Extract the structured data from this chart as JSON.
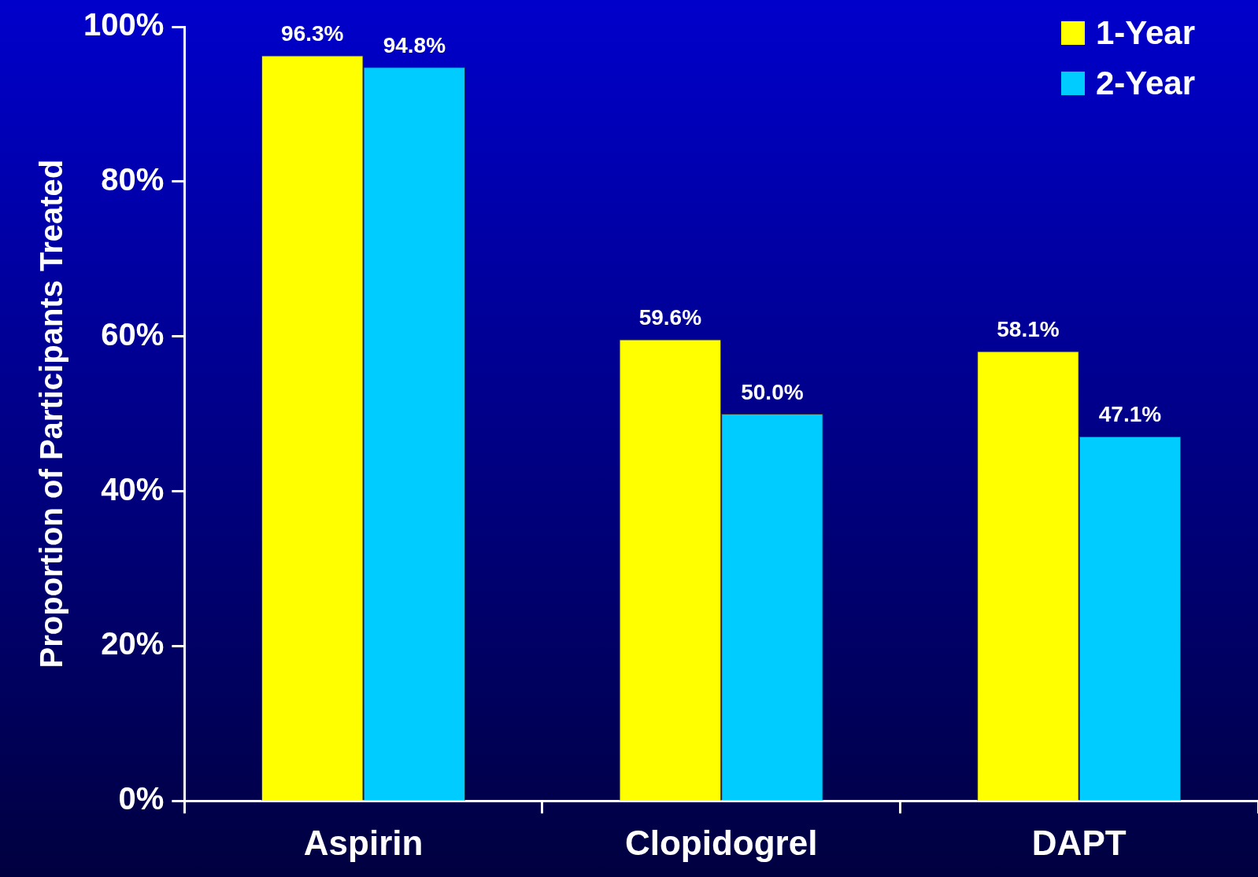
{
  "chart_data": {
    "type": "bar",
    "ylabel": "Proportion of Participants Treated",
    "categories": [
      "Aspirin",
      "Clopidogrel",
      "DAPT"
    ],
    "series": [
      {
        "name": "1-Year",
        "color": "#ffff00",
        "values": [
          96.3,
          59.6,
          58.1
        ]
      },
      {
        "name": "2-Year",
        "color": "#00ccff",
        "values": [
          94.8,
          50.0,
          47.1
        ]
      }
    ],
    "ylim": [
      0,
      100
    ],
    "yticks": [
      {
        "value": 0,
        "label": "0%"
      },
      {
        "value": 20,
        "label": "20%"
      },
      {
        "value": 40,
        "label": "40%"
      },
      {
        "value": 60,
        "label": "60%"
      },
      {
        "value": 80,
        "label": "80%"
      },
      {
        "value": 100,
        "label": "100%"
      }
    ],
    "value_labels": [
      [
        "96.3%",
        "59.6%",
        "58.1%"
      ],
      [
        "94.8%",
        "50.0%",
        "47.1%"
      ]
    ],
    "legend": "top right"
  }
}
